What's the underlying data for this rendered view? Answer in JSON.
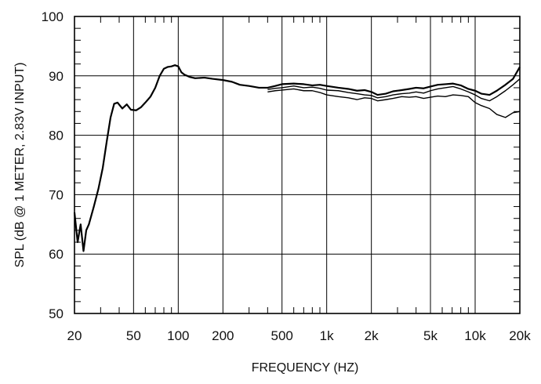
{
  "chart_data": {
    "type": "line",
    "title": "",
    "xlabel": "FREQUENCY  (HZ)",
    "ylabel": "SPL (dB @ 1 METER, 2.83V INPUT)",
    "xscale": "log",
    "xlim": [
      20,
      20000
    ],
    "ylim": [
      50,
      100
    ],
    "grid": true,
    "legend": "none",
    "x_ticks": [
      {
        "value": 20,
        "label": "20"
      },
      {
        "value": 50,
        "label": "50"
      },
      {
        "value": 100,
        "label": "100"
      },
      {
        "value": 200,
        "label": "200"
      },
      {
        "value": 500,
        "label": "500"
      },
      {
        "value": 1000,
        "label": "1k"
      },
      {
        "value": 2000,
        "label": "2k"
      },
      {
        "value": 5000,
        "label": "5k"
      },
      {
        "value": 10000,
        "label": "10k"
      },
      {
        "value": 20000,
        "label": "20k"
      }
    ],
    "y_ticks": [
      {
        "value": 50,
        "label": "50"
      },
      {
        "value": 60,
        "label": "60"
      },
      {
        "value": 70,
        "label": "70"
      },
      {
        "value": 80,
        "label": "80"
      },
      {
        "value": 90,
        "label": "90"
      },
      {
        "value": 100,
        "label": "100"
      }
    ],
    "series": [
      {
        "x": [
          20,
          21,
          22,
          23,
          24,
          25,
          27,
          29,
          31,
          33,
          35,
          37,
          39,
          42,
          45,
          48,
          52,
          56,
          60,
          65,
          70,
          75,
          80,
          85,
          90,
          95,
          100,
          105,
          110,
          120,
          130,
          150,
          170,
          200,
          230,
          260,
          300,
          350,
          400,
          450,
          500,
          600,
          700,
          800,
          900,
          1000,
          1200,
          1400,
          1600,
          1800,
          2000,
          2200,
          2500,
          2800,
          3200,
          3600,
          4000,
          4500,
          5000,
          5600,
          6300,
          7100,
          8000,
          9000,
          10000,
          11000,
          12500,
          14000,
          16000,
          18000,
          20000
        ],
        "values": [
          67,
          62,
          65,
          60.5,
          64,
          65,
          68,
          71,
          74.5,
          79,
          83,
          85.3,
          85.5,
          84.5,
          85.2,
          84.3,
          84.2,
          84.7,
          85.5,
          86.5,
          88,
          90,
          91.2,
          91.5,
          91.6,
          91.8,
          91.6,
          90.6,
          90.2,
          89.8,
          89.6,
          89.7,
          89.5,
          89.3,
          89,
          88.5,
          88.3,
          88,
          88,
          88.3,
          88.6,
          88.7,
          88.6,
          88.4,
          88.5,
          88.3,
          88,
          87.8,
          87.5,
          87.6,
          87.3,
          86.8,
          87,
          87.4,
          87.6,
          87.8,
          88,
          87.9,
          88.2,
          88.5,
          88.6,
          88.7,
          88.4,
          87.8,
          87.5,
          87,
          86.8,
          87.5,
          88.5,
          89.5,
          91.5
        ]
      },
      {
        "x": [
          400,
          450,
          500,
          600,
          700,
          800,
          900,
          1000,
          1200,
          1400,
          1600,
          1800,
          2000,
          2200,
          2500,
          2800,
          3200,
          3600,
          4000,
          4500,
          5000,
          5600,
          6300,
          7100,
          8000,
          9000,
          10000,
          11000,
          12500,
          14000,
          16000,
          18000,
          20000
        ],
        "values": [
          87.7,
          87.9,
          88,
          88.3,
          88,
          88.1,
          87.9,
          87.6,
          87.5,
          87.2,
          87,
          86.8,
          86.7,
          86.3,
          86.5,
          86.8,
          87,
          87.1,
          87.3,
          87.1,
          87.5,
          87.8,
          88,
          88.2,
          87.8,
          87.3,
          86.8,
          86.2,
          85.8,
          86.5,
          87.5,
          88.5,
          89.5
        ]
      },
      {
        "x": [
          400,
          450,
          500,
          600,
          700,
          800,
          900,
          1000,
          1200,
          1400,
          1600,
          1800,
          2000,
          2200,
          2500,
          2800,
          3200,
          3600,
          4000,
          4500,
          5000,
          5600,
          6300,
          7100,
          8000,
          9000,
          10000,
          11000,
          12500,
          14000,
          16000,
          18000,
          20000
        ],
        "values": [
          87.3,
          87.5,
          87.6,
          87.8,
          87.5,
          87.5,
          87.2,
          86.8,
          86.5,
          86.3,
          86,
          86.3,
          86.2,
          85.8,
          86,
          86.2,
          86.5,
          86.4,
          86.5,
          86.2,
          86.4,
          86.6,
          86.5,
          86.8,
          86.7,
          86.5,
          85.5,
          85,
          84.5,
          83.5,
          83,
          83.8,
          84
        ]
      }
    ]
  }
}
